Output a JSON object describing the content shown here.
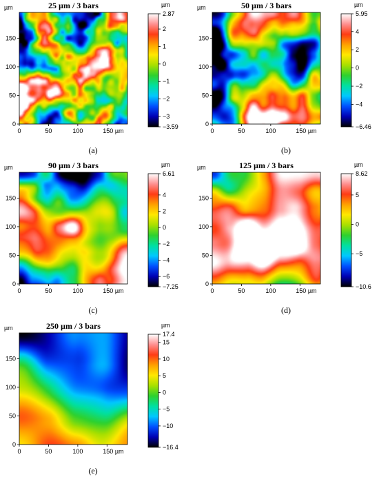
{
  "chart_data": [
    {
      "type": "heatmap",
      "title": "25 µm / 3 bars",
      "caption": "(a)",
      "x_unit": "µm",
      "y_unit": "µm",
      "z_unit": "µm",
      "xlim": [
        0,
        185
      ],
      "ylim": [
        0,
        195
      ],
      "x_ticks": [
        "0",
        "50",
        "100",
        "150 µm"
      ],
      "y_ticks": [
        "0",
        "50",
        "100",
        "150"
      ],
      "z_range": [
        -3.59,
        2.87
      ],
      "z_ticks": [
        "2.87",
        "2",
        "1",
        "0",
        "−1",
        "−2",
        "−3",
        "−3.59"
      ],
      "z_tick_values": [
        2.87,
        2,
        1,
        0,
        -1,
        -2,
        -3,
        -3.59
      ],
      "z_bias": 0.15,
      "feature_scale": 6,
      "seed": 11
    },
    {
      "type": "heatmap",
      "title": "50 µm / 3 bars",
      "caption": "(b)",
      "x_unit": "µm",
      "y_unit": "µm",
      "z_unit": "µm",
      "xlim": [
        0,
        185
      ],
      "ylim": [
        0,
        195
      ],
      "x_ticks": [
        "0",
        "50",
        "100",
        "150 µm"
      ],
      "y_ticks": [
        "0",
        "50",
        "100",
        "150"
      ],
      "z_range": [
        -6.46,
        5.95
      ],
      "z_ticks": [
        "5.95",
        "4",
        "2",
        "0",
        "−2",
        "−4",
        "−6.46"
      ],
      "z_tick_values": [
        5.95,
        4,
        2,
        0,
        -2,
        -4,
        -6.46
      ],
      "z_bias": 0.0,
      "feature_scale": 10,
      "seed": 23
    },
    {
      "type": "heatmap",
      "title": "90 µm / 3 bars",
      "caption": "(c)",
      "x_unit": "µm",
      "y_unit": "µm",
      "z_unit": "µm",
      "xlim": [
        0,
        185
      ],
      "ylim": [
        0,
        195
      ],
      "x_ticks": [
        "0",
        "50",
        "100",
        "150 µm"
      ],
      "y_ticks": [
        "0",
        "50",
        "100",
        "150"
      ],
      "z_range": [
        -7.25,
        6.61
      ],
      "z_ticks": [
        "6.61",
        "4",
        "2",
        "0",
        "−2",
        "−4",
        "−6",
        "−7.25"
      ],
      "z_tick_values": [
        6.61,
        4,
        2,
        0,
        -2,
        -4,
        -6,
        -7.25
      ],
      "z_bias": 0.05,
      "feature_scale": 13,
      "seed": 37
    },
    {
      "type": "heatmap",
      "title": "125 µm / 3 bars",
      "caption": "(d)",
      "x_unit": "µm",
      "y_unit": "µm",
      "z_unit": "µm",
      "xlim": [
        0,
        185
      ],
      "ylim": [
        0,
        195
      ],
      "x_ticks": [
        "0",
        "50",
        "100",
        "150 µm"
      ],
      "y_ticks": [
        "0",
        "50",
        "100",
        "150"
      ],
      "z_range": [
        -10.6,
        8.62
      ],
      "z_ticks": [
        "8.62",
        "5",
        "0",
        "−5",
        "−10.6"
      ],
      "z_tick_values": [
        8.62,
        5,
        0,
        -5,
        -10.6
      ],
      "z_bias": 0.1,
      "feature_scale": 17,
      "seed": 53
    },
    {
      "type": "heatmap",
      "title": "250 µm / 3 bars",
      "caption": "(e)",
      "x_unit": "µm",
      "y_unit": "µm",
      "z_unit": "µm",
      "xlim": [
        0,
        185
      ],
      "ylim": [
        0,
        195
      ],
      "x_ticks": [
        "0",
        "50",
        "100",
        "150 µm"
      ],
      "y_ticks": [
        "0",
        "50",
        "100",
        "150"
      ],
      "z_range": [
        -16.4,
        17.4
      ],
      "z_ticks": [
        "17.4",
        "15",
        "10",
        "5",
        "0",
        "−5",
        "−10",
        "−16.4"
      ],
      "z_tick_values": [
        17.4,
        15,
        10,
        5,
        0,
        -5,
        -10,
        -16.4
      ],
      "z_bias": -0.05,
      "feature_scale": 28,
      "seed": 71
    }
  ],
  "colormap": [
    "#000000",
    "#0000b4",
    "#0050ff",
    "#00c8ff",
    "#00e0a0",
    "#2ed12e",
    "#a8e000",
    "#ffe800",
    "#ffa000",
    "#ff3c14",
    "#ff9090",
    "#ffffff"
  ]
}
